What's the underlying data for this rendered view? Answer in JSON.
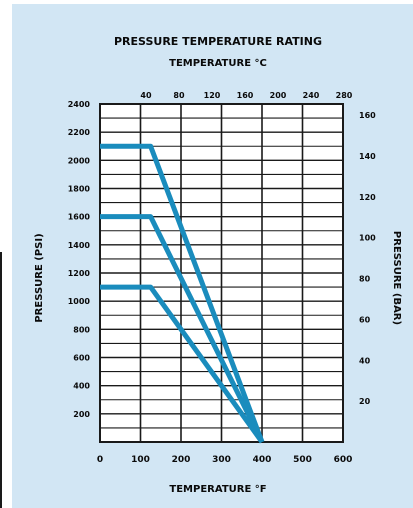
{
  "chart_data": {
    "type": "line",
    "title": "PRESSURE TEMPERATURE RATING",
    "top_axis_label": "TEMPERATURE °C",
    "xlabel": "TEMPERATURE °F",
    "ylabel": "PRESSURE (PSI)",
    "ylabel_right": "PRESSURE (BAR)",
    "x_ticks": [
      0,
      100,
      200,
      300,
      400,
      500,
      600
    ],
    "x_ticks_top": [
      40,
      80,
      120,
      160,
      200,
      240,
      280
    ],
    "y_ticks": [
      0,
      200,
      400,
      600,
      800,
      1000,
      1200,
      1400,
      1600,
      1800,
      2000,
      2200,
      2400
    ],
    "y_tick_labels": [
      "",
      "200",
      "400",
      "600",
      "800",
      "1000",
      "1200",
      "1400",
      "1600",
      "1800",
      "2000",
      "2200",
      "2400"
    ],
    "y_ticks_right": [
      20,
      40,
      60,
      80,
      100,
      120,
      140,
      160
    ],
    "xlim": [
      0,
      600
    ],
    "ylim": [
      0,
      2400
    ],
    "grid": true,
    "series": [
      {
        "x": [
          0,
          125,
          400
        ],
        "values": [
          2100,
          2100,
          0
        ]
      },
      {
        "x": [
          0,
          125,
          400
        ],
        "values": [
          1600,
          1600,
          0
        ]
      },
      {
        "x": [
          0,
          125,
          400
        ],
        "values": [
          1100,
          1100,
          0
        ]
      }
    ],
    "colors": {
      "panel": "#d2e6f4",
      "plot": "#ffffff",
      "line": "#1a8cbd",
      "grid": "#1a1a1a",
      "text": "#0a0a0a"
    }
  }
}
